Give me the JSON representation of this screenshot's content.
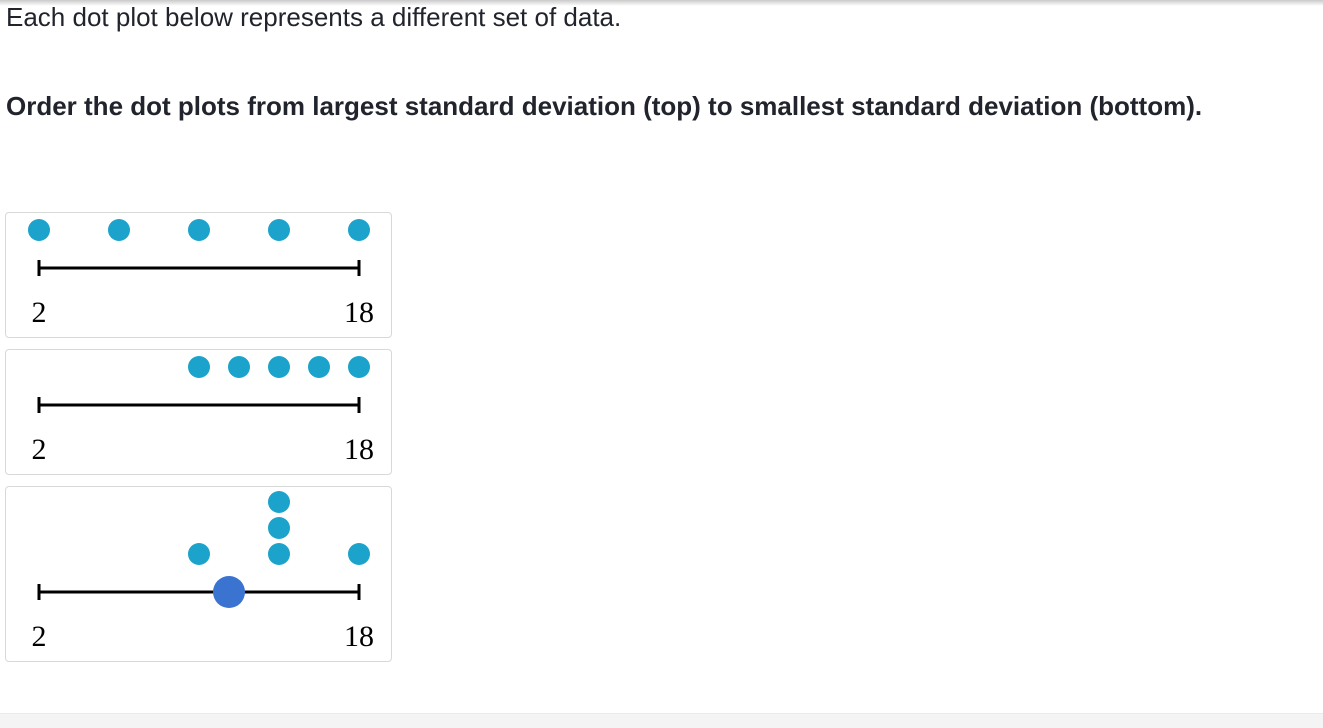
{
  "intro": "Each dot plot below represents a different set of data.",
  "question": "Order the dot plots from largest standard deviation (top) to smallest standard deviation (bottom).",
  "colors": {
    "dot": "#1ba3cc",
    "handle": "#3b73d1",
    "axis": "#000000",
    "card_border": "#d6d8da"
  },
  "icons": {
    "drag_handle": "drag-handle-icon"
  },
  "chart_data": [
    {
      "type": "scatter",
      "subtype": "dot-plot",
      "axis_min": 2,
      "axis_max": 18,
      "tick_labels": [
        "2",
        "18"
      ],
      "points": [
        {
          "x": 2,
          "count": 1
        },
        {
          "x": 6,
          "count": 1
        },
        {
          "x": 10,
          "count": 1
        },
        {
          "x": 14,
          "count": 1
        },
        {
          "x": 18,
          "count": 1
        }
      ]
    },
    {
      "type": "scatter",
      "subtype": "dot-plot",
      "axis_min": 2,
      "axis_max": 18,
      "tick_labels": [
        "2",
        "18"
      ],
      "points": [
        {
          "x": 10,
          "count": 1
        },
        {
          "x": 12,
          "count": 1
        },
        {
          "x": 14,
          "count": 1
        },
        {
          "x": 16,
          "count": 1
        },
        {
          "x": 18,
          "count": 1
        }
      ]
    },
    {
      "type": "scatter",
      "subtype": "dot-plot",
      "axis_min": 2,
      "axis_max": 18,
      "tick_labels": [
        "2",
        "18"
      ],
      "points": [
        {
          "x": 10,
          "count": 1
        },
        {
          "x": 14,
          "count": 3
        },
        {
          "x": 18,
          "count": 1
        }
      ],
      "handle_x": 11.5
    }
  ]
}
